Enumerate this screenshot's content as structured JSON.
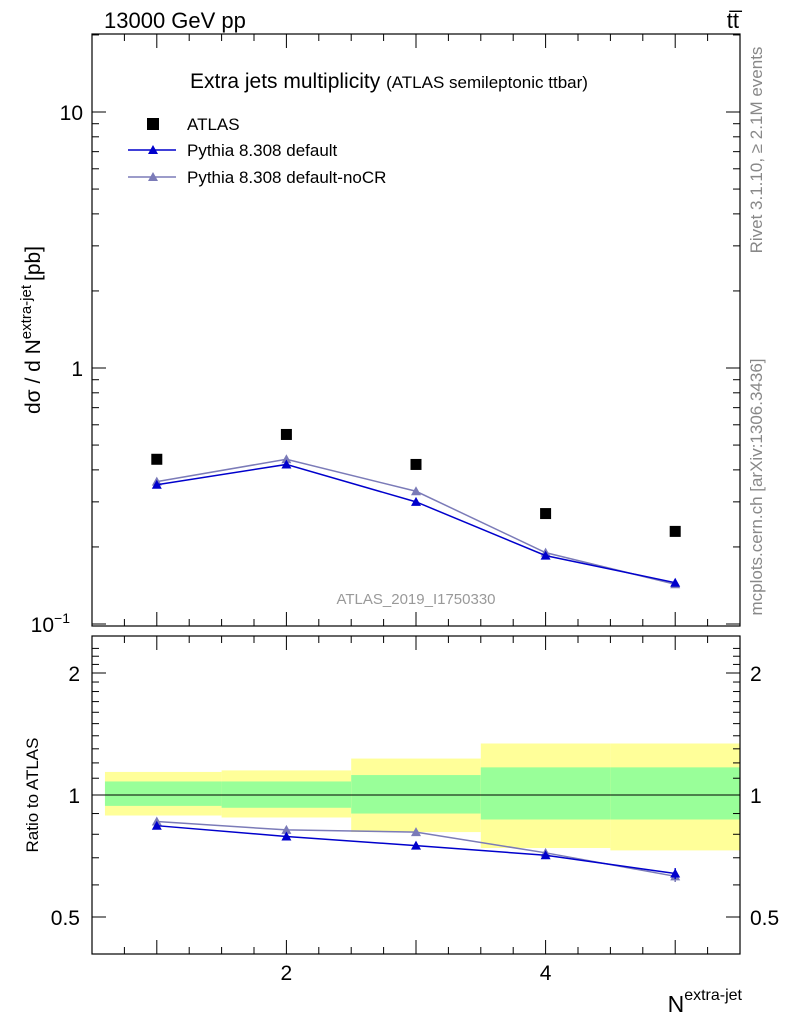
{
  "header": {
    "left": "13000 GeV pp",
    "right": "tt̅"
  },
  "side_labels": {
    "rivet": "Rivet 3.1.10, ≥ 2.1M events",
    "mcplots": "mcplots.cern.ch [arXiv:1306.3436]"
  },
  "colors": {
    "atlas": "#000000",
    "pythia_default": "#0000cc",
    "pythia_nocr": "#7b7bb8",
    "band_inner": "#99ff99",
    "band_outer": "#ffff99",
    "watermark": "#999999"
  },
  "chart_data": [
    {
      "type": "scatter",
      "title": "Extra jets multiplicity",
      "subtitle": "(ATLAS semileptonic ttbar)",
      "ylabel_main": "dσ / d N",
      "ylabel_sup": "extra-jet",
      "ylabel_unit": "[pb]",
      "yscale": "log",
      "ylim": [
        0.1,
        20
      ],
      "xlim": [
        0.5,
        5.5
      ],
      "y_ticks": [
        {
          "value": 10,
          "label": "10"
        },
        {
          "value": 1,
          "label": "1"
        },
        {
          "value": 0.1,
          "label": "10",
          "sup": "−1"
        }
      ],
      "watermark": "ATLAS_2019_I1750330",
      "legend_position": "top-left",
      "x": [
        1,
        2,
        3,
        4,
        5
      ],
      "series": [
        {
          "name": "ATLAS",
          "marker": "square",
          "values": [
            0.44,
            0.55,
            0.42,
            0.27,
            0.23
          ]
        },
        {
          "name": "Pythia 8.308 default",
          "marker": "triangle",
          "values": [
            0.35,
            0.42,
            0.3,
            0.185,
            0.145
          ]
        },
        {
          "name": "Pythia 8.308 default-noCR",
          "marker": "triangle",
          "values": [
            0.36,
            0.44,
            0.33,
            0.19,
            0.143
          ]
        }
      ]
    },
    {
      "type": "line",
      "ylabel": "Ratio to ATLAS",
      "xlabel_main": "N",
      "xlabel_sup": "extra-jet",
      "yscale": "log",
      "ylim": [
        0.43,
        2.4
      ],
      "xlim": [
        0.5,
        5.5
      ],
      "x_ticks": [
        {
          "value": 2,
          "label": "2"
        },
        {
          "value": 4,
          "label": "4"
        }
      ],
      "y_ticks": [
        {
          "value": 2,
          "label": "2"
        },
        {
          "value": 1,
          "label": "1"
        },
        {
          "value": 0.5,
          "label": "0.5"
        }
      ],
      "bands": [
        {
          "xlo": 0.6,
          "xhi": 1.5,
          "inner": [
            0.94,
            1.08
          ],
          "outer": [
            0.89,
            1.14
          ]
        },
        {
          "xlo": 1.5,
          "xhi": 2.5,
          "inner": [
            0.93,
            1.08
          ],
          "outer": [
            0.88,
            1.15
          ]
        },
        {
          "xlo": 2.5,
          "xhi": 3.5,
          "inner": [
            0.9,
            1.12
          ],
          "outer": [
            0.81,
            1.23
          ]
        },
        {
          "xlo": 3.5,
          "xhi": 4.5,
          "inner": [
            0.87,
            1.17
          ],
          "outer": [
            0.74,
            1.34
          ]
        },
        {
          "xlo": 4.5,
          "xhi": 5.5,
          "inner": [
            0.87,
            1.17
          ],
          "outer": [
            0.73,
            1.34
          ]
        }
      ],
      "x": [
        1,
        2,
        3,
        4,
        5
      ],
      "series": [
        {
          "name": "Pythia 8.308 default",
          "values": [
            0.84,
            0.79,
            0.75,
            0.71,
            0.64
          ],
          "err": [
            0.01,
            0.01,
            0.015,
            0.015,
            0.02
          ]
        },
        {
          "name": "Pythia 8.308 default-noCR",
          "values": [
            0.86,
            0.82,
            0.81,
            0.72,
            0.63
          ],
          "err": [
            0.01,
            0.01,
            0.015,
            0.015,
            0.02
          ]
        }
      ]
    }
  ]
}
